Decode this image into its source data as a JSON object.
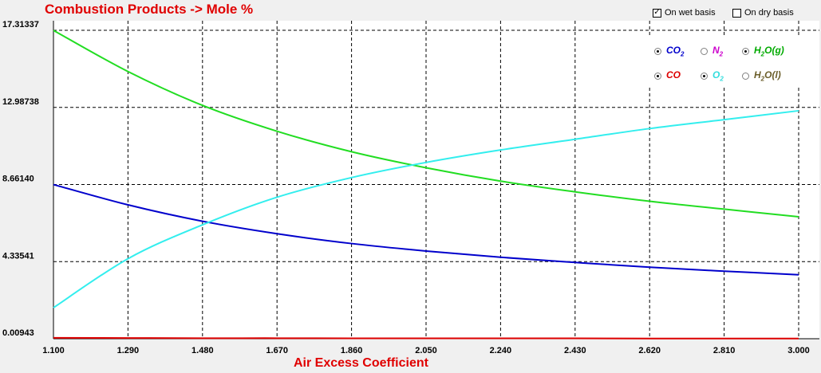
{
  "title": "Combustion Products -> Mole %",
  "basis": {
    "wet": {
      "label": "On wet basis",
      "checked": true
    },
    "dry": {
      "label": "On dry basis",
      "checked": false
    }
  },
  "legend_items": [
    {
      "label": "CO",
      "sub": "2",
      "tail": "",
      "color": "#0000cc",
      "selected": true
    },
    {
      "label": "N",
      "sub": "2",
      "tail": "",
      "color": "#cc00cc",
      "selected": false
    },
    {
      "label": "H",
      "sub": "2",
      "tail": "O(g)",
      "color": "#00aa00",
      "selected": true
    },
    {
      "label": "CO",
      "sub": "",
      "tail": "",
      "color": "#dd0000",
      "selected": true
    },
    {
      "label": "O",
      "sub": "2",
      "tail": "",
      "color": "#33dddd",
      "selected": true
    },
    {
      "label": "H",
      "sub": "2",
      "tail": "O(l)",
      "color": "#6b5e2a",
      "selected": false
    }
  ],
  "chart_data": {
    "type": "line",
    "title": "Combustion Products -> Mole %",
    "xlabel": "Air Excess Coefficient",
    "ylabel": "",
    "xlim": [
      1.1,
      3.0
    ],
    "ylim": [
      0.00943,
      17.31337
    ],
    "grid": true,
    "legend_position": "top-right",
    "x_ticks": [
      "1.100",
      "1.290",
      "1.480",
      "1.670",
      "1.860",
      "2.050",
      "2.240",
      "2.430",
      "2.620",
      "2.810",
      "3.000"
    ],
    "y_ticks": [
      "0.00943",
      "4.33541",
      "8.66140",
      "12.98738",
      "17.31337"
    ],
    "x": [
      1.1,
      1.29,
      1.48,
      1.67,
      1.86,
      2.05,
      2.24,
      2.43,
      2.62,
      2.81,
      3.0
    ],
    "series": [
      {
        "name": "CO2",
        "color": "#0000cc",
        "values": [
          8.66,
          7.52,
          6.6,
          5.9,
          5.35,
          4.93,
          4.58,
          4.29,
          4.02,
          3.8,
          3.6
        ]
      },
      {
        "name": "CO",
        "color": "#dd0000",
        "values": [
          0.06,
          0.05,
          0.04,
          0.04,
          0.03,
          0.03,
          0.03,
          0.03,
          0.02,
          0.02,
          0.02
        ]
      },
      {
        "name": "H2O(g)",
        "color": "#22dd22",
        "values": [
          17.31,
          15.0,
          13.1,
          11.65,
          10.5,
          9.6,
          8.85,
          8.25,
          7.72,
          7.28,
          6.85
        ]
      },
      {
        "name": "O2",
        "color": "#33eeee",
        "values": [
          1.75,
          4.5,
          6.4,
          7.95,
          9.05,
          9.9,
          10.6,
          11.2,
          11.8,
          12.3,
          12.8
        ]
      }
    ]
  }
}
